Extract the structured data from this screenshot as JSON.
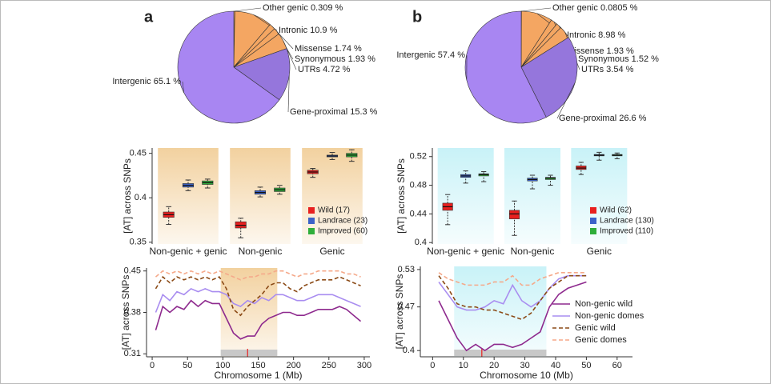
{
  "chart_data": [
    {
      "type": "pie",
      "panel": "a",
      "categories": [
        "Other genic",
        "Intronic",
        "Missense",
        "Synonymous",
        "UTRs",
        "Gene-proximal",
        "Intergenic"
      ],
      "values": [
        0.309,
        10.9,
        1.74,
        1.93,
        4.72,
        15.3,
        65.1
      ],
      "value_labels": [
        "0.309 %",
        "10.9 %",
        "1.74 %",
        "1.93 %",
        "4.72 %",
        "15.3 %",
        "65.1 %"
      ],
      "colors": [
        "#f4a662",
        "#f4a662",
        "#f4a662",
        "#f4a662",
        "#f4a662",
        "#9576dc",
        "#a886f2"
      ]
    },
    {
      "type": "box",
      "ylabel": "[AT] across SNPs",
      "categories": [
        "Non-genic + genic",
        "Non-genic",
        "Genic"
      ],
      "ylim": [
        0.348,
        0.456
      ],
      "yticks": [
        0.35,
        0.4,
        0.45
      ],
      "band_color": "#f0c98e",
      "series": [
        {
          "name": "Wild (17)",
          "color": "#e8201f",
          "whisker_low": [
            0.37,
            0.355,
            0.423
          ],
          "q1": [
            0.378,
            0.366,
            0.427
          ],
          "median": [
            0.381,
            0.369,
            0.429
          ],
          "q3": [
            0.384,
            0.373,
            0.431
          ],
          "whisker_high": [
            0.39,
            0.377,
            0.433
          ]
        },
        {
          "name": "Landrace (23)",
          "color": "#3c62c8",
          "whisker_low": [
            0.408,
            0.401,
            0.443
          ],
          "q1": [
            0.412,
            0.404,
            0.446
          ],
          "median": [
            0.414,
            0.406,
            0.447
          ],
          "q3": [
            0.416,
            0.408,
            0.448
          ],
          "whisker_high": [
            0.42,
            0.412,
            0.451
          ]
        },
        {
          "name": "Improved (60)",
          "color": "#2fae3a",
          "whisker_low": [
            0.411,
            0.404,
            0.441
          ],
          "q1": [
            0.415,
            0.407,
            0.446
          ],
          "median": [
            0.417,
            0.409,
            0.448
          ],
          "q3": [
            0.419,
            0.411,
            0.45
          ],
          "whisker_high": [
            0.421,
            0.414,
            0.454
          ]
        }
      ]
    },
    {
      "type": "line",
      "xlabel": "Chromosome 1 (Mb)",
      "ylabel": "[AT] across SNPs",
      "xlim": [
        -8,
        308
      ],
      "xticks": [
        0,
        50,
        100,
        150,
        200,
        250,
        300
      ],
      "ylim": [
        0.305,
        0.455
      ],
      "yticks": [
        0.31,
        0.38,
        0.45
      ],
      "highlight": [
        97,
        177
      ],
      "marker": 135,
      "band_color": "#f0c98e",
      "x": [
        5,
        15,
        25,
        35,
        45,
        55,
        65,
        75,
        85,
        95,
        105,
        115,
        125,
        135,
        145,
        155,
        165,
        175,
        185,
        195,
        205,
        215,
        225,
        235,
        245,
        255,
        265,
        275,
        285,
        295
      ],
      "series": [
        {
          "color": "#8e2a8e",
          "style": "solid",
          "values": [
            0.35,
            0.39,
            0.38,
            0.39,
            0.385,
            0.4,
            0.39,
            0.4,
            0.395,
            0.395,
            0.37,
            0.345,
            0.335,
            0.34,
            0.34,
            0.36,
            0.37,
            0.375,
            0.38,
            0.38,
            0.375,
            0.375,
            0.38,
            0.385,
            0.385,
            0.385,
            0.39,
            0.385,
            0.375,
            0.365
          ]
        },
        {
          "color": "#a98df0",
          "style": "solid",
          "values": [
            0.38,
            0.41,
            0.4,
            0.415,
            0.41,
            0.42,
            0.415,
            0.42,
            0.415,
            0.415,
            0.41,
            0.395,
            0.39,
            0.4,
            0.395,
            0.405,
            0.4,
            0.41,
            0.41,
            0.405,
            0.4,
            0.4,
            0.405,
            0.41,
            0.41,
            0.41,
            0.405,
            0.4,
            0.395,
            0.39
          ]
        },
        {
          "color": "#8b4a16",
          "style": "dashed",
          "values": [
            0.42,
            0.44,
            0.43,
            0.44,
            0.435,
            0.44,
            0.435,
            0.44,
            0.435,
            0.44,
            0.42,
            0.385,
            0.375,
            0.39,
            0.4,
            0.41,
            0.425,
            0.43,
            0.43,
            0.42,
            0.415,
            0.425,
            0.43,
            0.435,
            0.435,
            0.435,
            0.44,
            0.435,
            0.43,
            0.425
          ]
        },
        {
          "color": "#f5a98a",
          "style": "dashed",
          "values": [
            0.44,
            0.45,
            0.445,
            0.45,
            0.445,
            0.45,
            0.445,
            0.45,
            0.445,
            0.45,
            0.445,
            0.44,
            0.435,
            0.44,
            0.44,
            0.445,
            0.445,
            0.45,
            0.45,
            0.445,
            0.44,
            0.445,
            0.445,
            0.45,
            0.45,
            0.45,
            0.45,
            0.445,
            0.445,
            0.44
          ]
        }
      ]
    },
    {
      "type": "pie",
      "panel": "b",
      "categories": [
        "Other genic",
        "Intronic",
        "Missense",
        "Synonymous",
        "UTRs",
        "Gene-proximal",
        "Intergenic"
      ],
      "values": [
        0.0805,
        8.98,
        1.93,
        1.52,
        3.54,
        26.6,
        57.4
      ],
      "value_labels": [
        "0.0805 %",
        "8.98 %",
        "1.93 %",
        "1.52 %",
        "3.54 %",
        "26.6 %",
        "57.4 %"
      ],
      "colors": [
        "#f4a662",
        "#f4a662",
        "#f4a662",
        "#f4a662",
        "#f4a662",
        "#9576dc",
        "#a886f2"
      ]
    },
    {
      "type": "box",
      "ylabel": "[AT] across SNPs",
      "categories": [
        "Non-genic + genic",
        "Non-genic",
        "Genic"
      ],
      "ylim": [
        0.398,
        0.532
      ],
      "yticks": [
        0.4,
        0.44,
        0.48,
        0.52
      ],
      "band_color": "#bff0f6",
      "series": [
        {
          "name": "Wild (62)",
          "color": "#e8201f",
          "whisker_low": [
            0.425,
            0.41,
            0.495
          ],
          "q1": [
            0.445,
            0.433,
            0.502
          ],
          "median": [
            0.45,
            0.44,
            0.504
          ],
          "q3": [
            0.455,
            0.445,
            0.507
          ],
          "whisker_high": [
            0.467,
            0.458,
            0.512
          ]
        },
        {
          "name": "Landrace (130)",
          "color": "#3c62c8",
          "whisker_low": [
            0.483,
            0.475,
            0.515
          ],
          "q1": [
            0.491,
            0.486,
            0.521
          ],
          "median": [
            0.493,
            0.488,
            0.522
          ],
          "q3": [
            0.495,
            0.49,
            0.523
          ],
          "whisker_high": [
            0.5,
            0.494,
            0.526
          ]
        },
        {
          "name": "Improved (110)",
          "color": "#2fae3a",
          "whisker_low": [
            0.485,
            0.48,
            0.517
          ],
          "q1": [
            0.493,
            0.488,
            0.521
          ],
          "median": [
            0.495,
            0.49,
            0.522
          ],
          "q3": [
            0.496,
            0.491,
            0.523
          ],
          "whisker_high": [
            0.499,
            0.494,
            0.525
          ]
        }
      ]
    },
    {
      "type": "line",
      "xlabel": "Chromosome 10 (Mb)",
      "ylabel": "[AT] across SNPs",
      "xlim": [
        -4,
        65
      ],
      "xticks": [
        0,
        10,
        20,
        30,
        40,
        50,
        60
      ],
      "ylim": [
        0.39,
        0.535
      ],
      "yticks": [
        0.4,
        0.47,
        0.53
      ],
      "highlight": [
        7,
        37
      ],
      "marker": 16,
      "band_color": "#bff0f6",
      "legend": "lower right",
      "x": [
        2,
        5,
        8,
        11,
        14,
        17,
        20,
        23,
        26,
        29,
        32,
        35,
        38,
        41,
        44,
        47,
        50
      ],
      "series": [
        {
          "name": "Non-genic wild",
          "color": "#8e2a8e",
          "style": "solid",
          "values": [
            0.48,
            0.45,
            0.42,
            0.4,
            0.41,
            0.4,
            0.41,
            0.41,
            0.405,
            0.41,
            0.42,
            0.43,
            0.47,
            0.49,
            0.5,
            0.505,
            0.51
          ]
        },
        {
          "name": "Non-genic domes",
          "color": "#a98df0",
          "style": "solid",
          "values": [
            0.51,
            0.49,
            0.47,
            0.465,
            0.465,
            0.47,
            0.48,
            0.475,
            0.505,
            0.48,
            0.47,
            0.48,
            0.5,
            0.515,
            0.52,
            0.52,
            0.52
          ]
        },
        {
          "name": "Genic wild",
          "color": "#8b4a16",
          "style": "dashed",
          "values": [
            0.52,
            0.5,
            0.475,
            0.47,
            0.47,
            0.465,
            0.465,
            0.46,
            0.455,
            0.45,
            0.46,
            0.48,
            0.5,
            0.51,
            0.52,
            0.52,
            0.52
          ]
        },
        {
          "name": "Genic domes",
          "color": "#f5a98a",
          "style": "dashed",
          "values": [
            0.525,
            0.515,
            0.51,
            0.505,
            0.505,
            0.505,
            0.51,
            0.51,
            0.52,
            0.505,
            0.505,
            0.515,
            0.52,
            0.525,
            0.525,
            0.525,
            0.525
          ]
        }
      ]
    }
  ]
}
